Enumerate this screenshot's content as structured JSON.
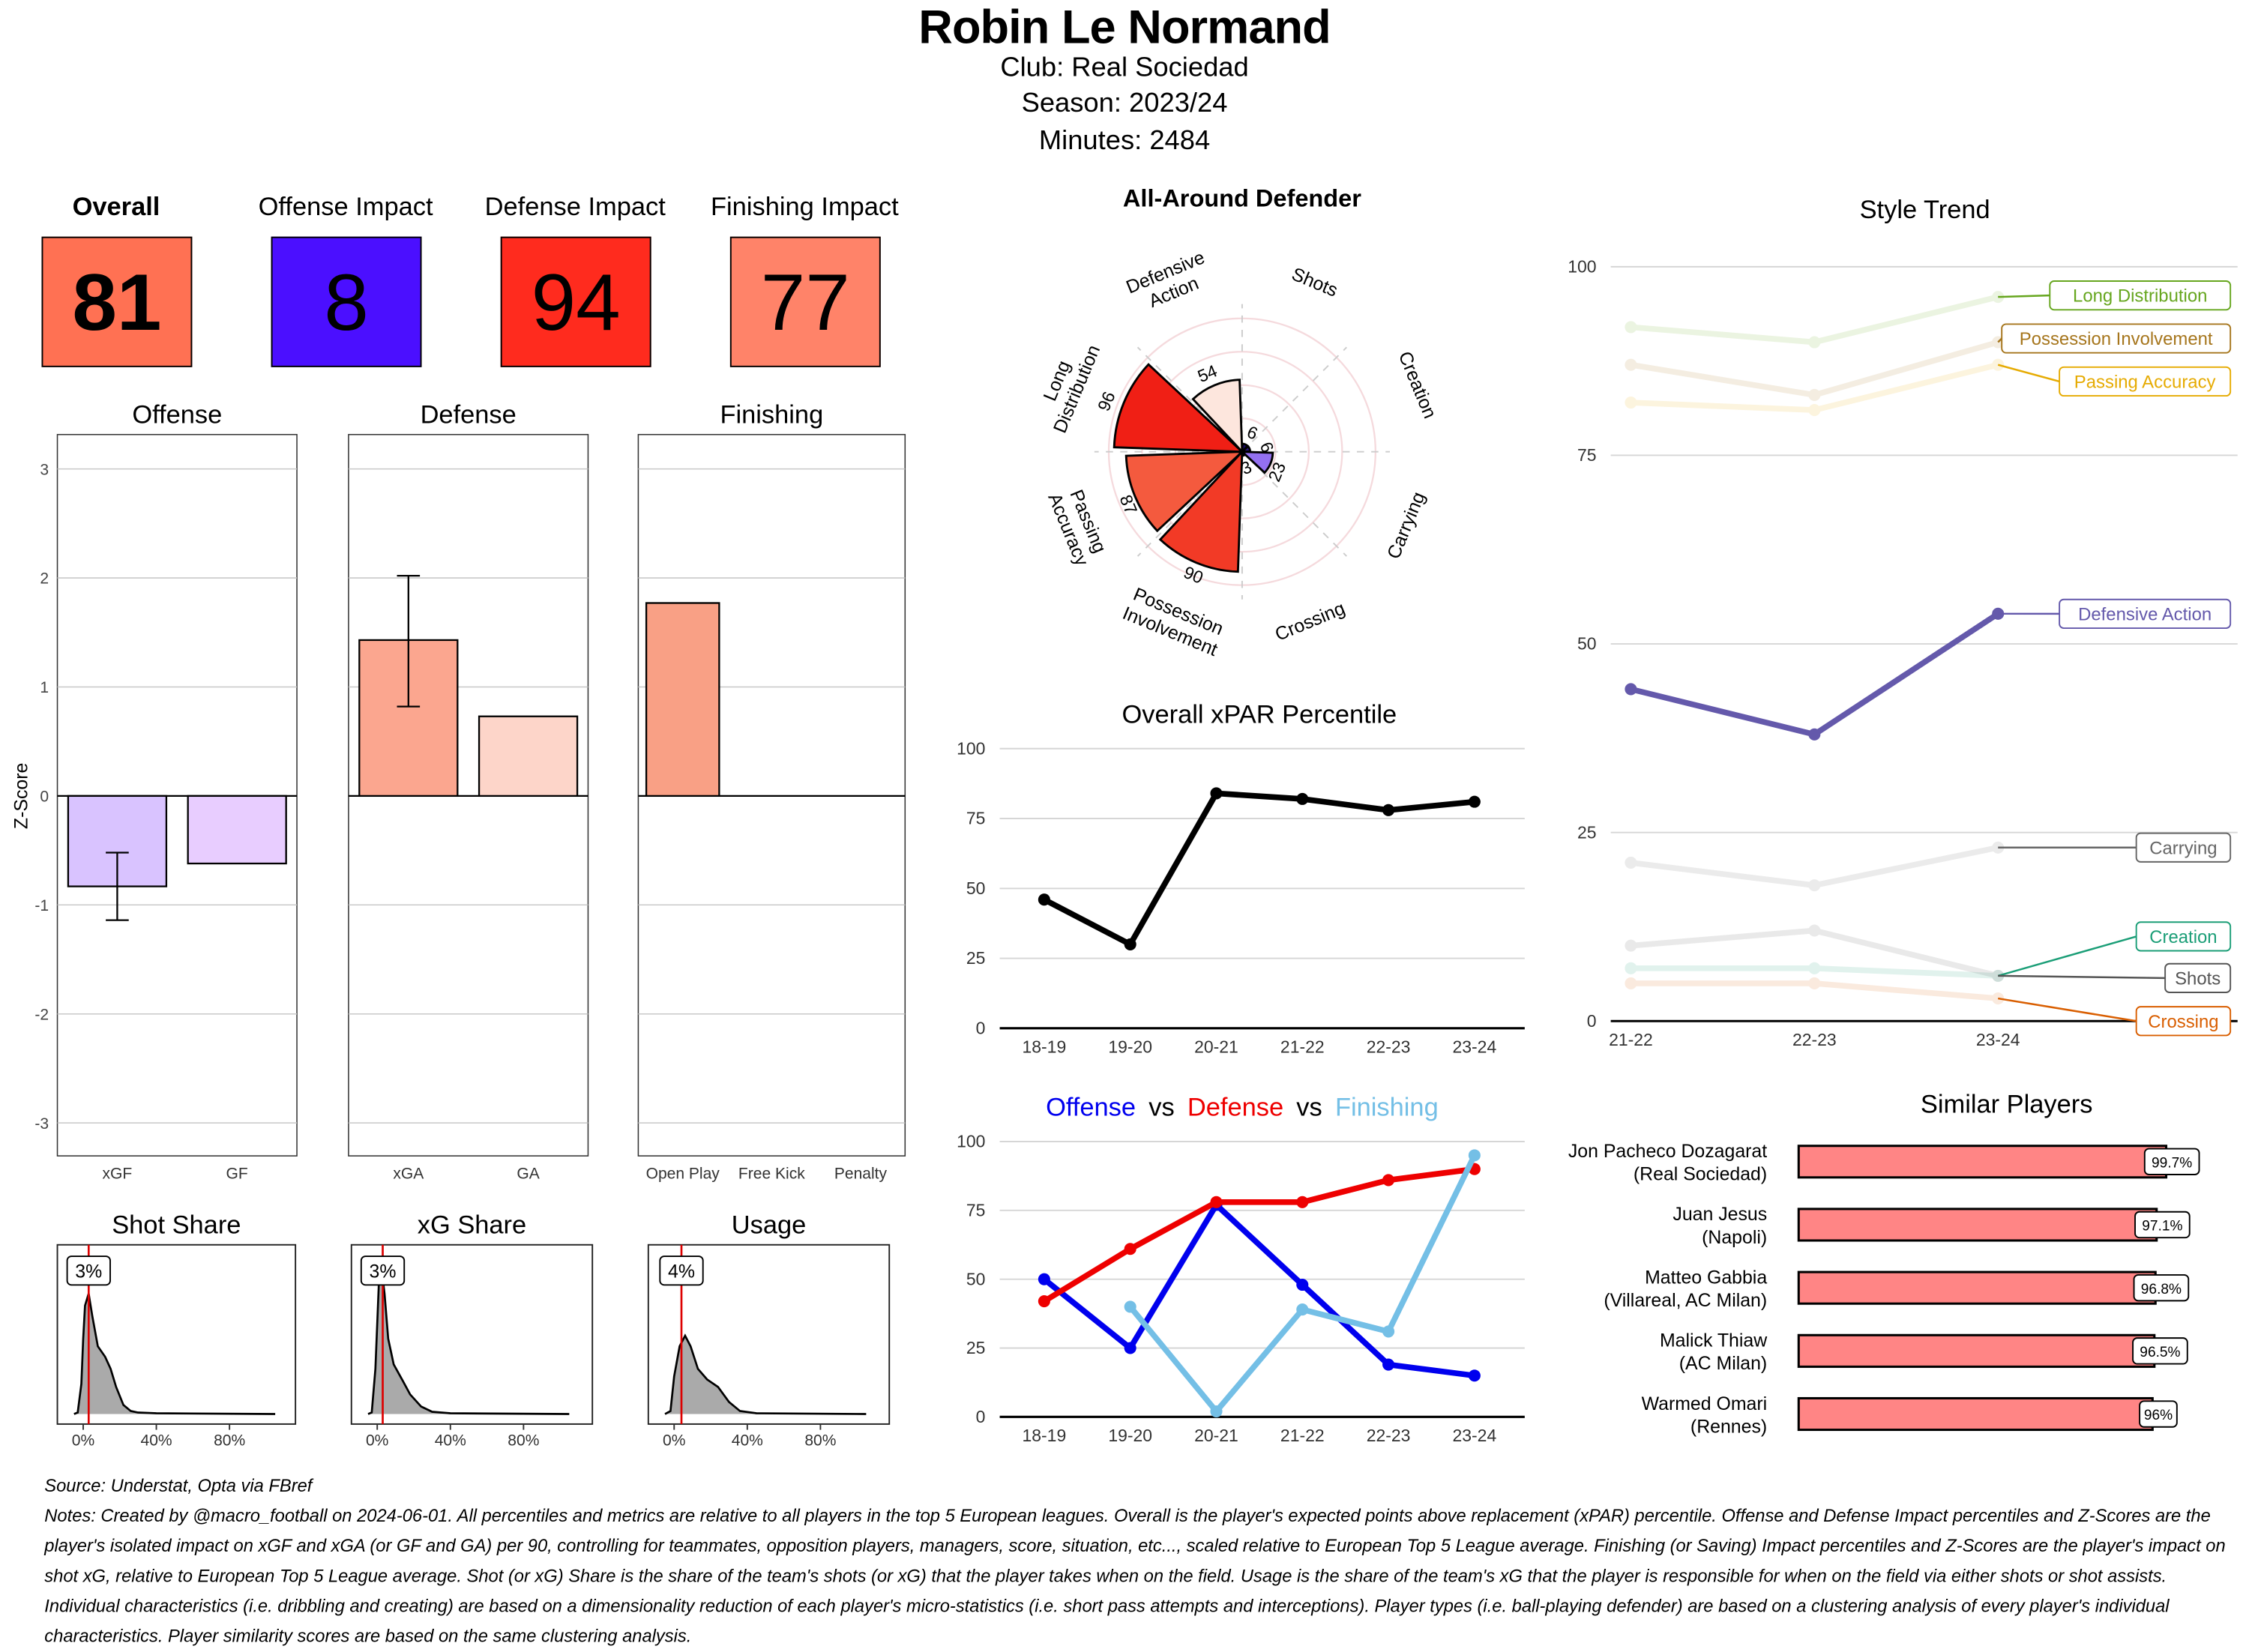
{
  "header": {
    "player_name": "Robin Le Normand",
    "club": "Club:  Real Sociedad",
    "season": "Season:  2023/24",
    "minutes": "Minutes:  2484"
  },
  "impacts": [
    {
      "label": "Overall",
      "value": "81",
      "color": "#FF7153"
    },
    {
      "label": "Offense Impact",
      "value": "8",
      "color": "#4B0FFF"
    },
    {
      "label": "Defense Impact",
      "value": "94",
      "color": "#FF2B1E"
    },
    {
      "label": "Finishing Impact",
      "value": "77",
      "color": "#FF8369"
    }
  ],
  "chart_data": [
    {
      "type": "bar",
      "title": "Offense",
      "ylabel": "Z-Score",
      "ylim": [
        -3.3,
        3.35
      ],
      "yticks": [
        -3,
        -2,
        -1,
        0,
        1,
        2,
        3
      ],
      "categories": [
        "xGF",
        "GF"
      ],
      "values": [
        -0.83,
        -0.62
      ],
      "errors": [
        [
          -1.14,
          -0.52
        ],
        null
      ],
      "colors": [
        "#D9C3FF",
        "#E8CDFF"
      ]
    },
    {
      "type": "bar",
      "title": "Defense",
      "ylim": [
        -3.3,
        3.35
      ],
      "categories": [
        "xGA",
        "GA"
      ],
      "values": [
        1.43,
        0.73
      ],
      "errors": [
        [
          0.82,
          2.02
        ],
        null
      ],
      "colors": [
        "#FBA68F",
        "#FDD5C9"
      ]
    },
    {
      "type": "bar",
      "title": "Finishing",
      "ylim": [
        -3.3,
        3.35
      ],
      "categories": [
        "Open Play",
        "Free Kick",
        "Penalty"
      ],
      "values": [
        1.77,
        0,
        0
      ],
      "errors": [
        null,
        null,
        null
      ],
      "colors": [
        "#F9A085",
        "#F9A085",
        "#F9A085"
      ]
    },
    {
      "type": "area",
      "title": "Shot Share",
      "marker": 3,
      "marker_label": "3%",
      "xticks": [
        "0%",
        "40%",
        "80%"
      ],
      "xtick_values": [
        0,
        40,
        80
      ],
      "density": [
        [
          -5,
          0
        ],
        [
          -3,
          0.01
        ],
        [
          -1,
          0.2
        ],
        [
          0,
          0.5
        ],
        [
          1,
          0.72
        ],
        [
          3,
          0.8
        ],
        [
          5,
          0.65
        ],
        [
          8,
          0.45
        ],
        [
          12,
          0.38
        ],
        [
          15,
          0.3
        ],
        [
          18,
          0.18
        ],
        [
          22,
          0.06
        ],
        [
          26,
          0.02
        ],
        [
          30,
          0.01
        ],
        [
          40,
          0.005
        ],
        [
          105,
          0
        ]
      ]
    },
    {
      "type": "area",
      "title": "xG Share",
      "marker": 3,
      "marker_label": "3%",
      "xticks": [
        "0%",
        "40%",
        "80%"
      ],
      "xtick_values": [
        0,
        40,
        80
      ],
      "density": [
        [
          -5,
          0
        ],
        [
          -3,
          0.01
        ],
        [
          -1,
          0.3
        ],
        [
          1,
          0.9
        ],
        [
          2,
          1.0
        ],
        [
          4,
          0.8
        ],
        [
          6,
          0.5
        ],
        [
          9,
          0.33
        ],
        [
          14,
          0.22
        ],
        [
          18,
          0.13
        ],
        [
          24,
          0.05
        ],
        [
          30,
          0.015
        ],
        [
          40,
          0.005
        ],
        [
          105,
          0
        ]
      ]
    },
    {
      "type": "area",
      "title": "Usage",
      "marker": 4,
      "marker_label": "4%",
      "xticks": [
        "0%",
        "40%",
        "80%"
      ],
      "xtick_values": [
        0,
        40,
        80
      ],
      "density": [
        [
          -5,
          0
        ],
        [
          -2,
          0.02
        ],
        [
          0,
          0.25
        ],
        [
          3,
          0.45
        ],
        [
          6,
          0.52
        ],
        [
          9,
          0.45
        ],
        [
          13,
          0.3
        ],
        [
          18,
          0.23
        ],
        [
          24,
          0.18
        ],
        [
          30,
          0.08
        ],
        [
          36,
          0.02
        ],
        [
          45,
          0.005
        ],
        [
          105,
          0
        ]
      ]
    },
    {
      "type": "bar",
      "subtype": "polar",
      "title": "All-Around Defender",
      "categories": [
        [
          "Shots"
        ],
        [
          "Creation"
        ],
        [
          "Carrying"
        ],
        [
          "Crossing"
        ],
        [
          "Possession",
          "Involvement"
        ],
        [
          "Passing",
          "Accuracy"
        ],
        [
          "Long",
          "Distribution"
        ],
        [
          "Defensive",
          "Action"
        ]
      ],
      "values": [
        6,
        6,
        23,
        3,
        90,
        87,
        96,
        54
      ],
      "colors": [
        "#1A0A6B",
        "#2A1480",
        "#9370F0",
        "#F6D7CC",
        "#F23A26",
        "#F45A3E",
        "#F01F15",
        "#FDE6DD"
      ],
      "ylim": [
        0,
        100
      ]
    },
    {
      "type": "line",
      "title": "Overall xPAR Percentile",
      "categories": [
        "18-19",
        "19-20",
        "20-21",
        "21-22",
        "22-23",
        "23-24"
      ],
      "yticks": [
        0,
        25,
        50,
        75,
        100
      ],
      "ylim": [
        0,
        100
      ],
      "series": [
        {
          "values": [
            46,
            30,
            84,
            82,
            78,
            81
          ],
          "color": "#000000"
        }
      ]
    },
    {
      "type": "line",
      "title_parts": [
        {
          "text": "Offense",
          "color": "#0000EE"
        },
        {
          "text": "vs",
          "color": "#000000"
        },
        {
          "text": "Defense",
          "color": "#EE0000"
        },
        {
          "text": "vs",
          "color": "#000000"
        },
        {
          "text": "Finishing",
          "color": "#74BFE6"
        }
      ],
      "categories": [
        "18-19",
        "19-20",
        "20-21",
        "21-22",
        "22-23",
        "23-24"
      ],
      "yticks": [
        0,
        25,
        50,
        75,
        100
      ],
      "ylim": [
        0,
        100
      ],
      "series": [
        {
          "name": "Offense",
          "values": [
            50,
            25,
            77,
            48,
            19,
            15
          ],
          "color": "#0000EE"
        },
        {
          "name": "Defense",
          "values": [
            42,
            61,
            78,
            78,
            86,
            90
          ],
          "color": "#EE0000"
        },
        {
          "name": "Finishing",
          "values": [
            null,
            40,
            2,
            39,
            31,
            95
          ],
          "color": "#74BFE6"
        }
      ]
    },
    {
      "type": "line",
      "title": "Style Trend",
      "categories": [
        "21-22",
        "22-23",
        "23-24"
      ],
      "yticks": [
        0,
        25,
        50,
        75,
        100
      ],
      "ylim": [
        0,
        100
      ],
      "highlight": "Defensive Action",
      "series": [
        {
          "name": "Long Distribution",
          "values": [
            92,
            90,
            96
          ],
          "color": "#66A61E"
        },
        {
          "name": "Possession Involvement",
          "values": [
            87,
            83,
            90
          ],
          "color": "#A6761D"
        },
        {
          "name": "Passing Accuracy",
          "values": [
            82,
            81,
            87
          ],
          "color": "#E6AB02"
        },
        {
          "name": "Defensive Action",
          "values": [
            44,
            38,
            54
          ],
          "color": "#6459AB"
        },
        {
          "name": "Carrying",
          "values": [
            21,
            18,
            23
          ],
          "color": "#666666"
        },
        {
          "name": "Creation",
          "values": [
            7,
            7,
            6
          ],
          "color": "#1B9E77"
        },
        {
          "name": "Shots",
          "values": [
            10,
            12,
            6
          ],
          "color": "#555555"
        },
        {
          "name": "Crossing",
          "values": [
            5,
            5,
            3
          ],
          "color": "#D95F02"
        }
      ]
    },
    {
      "type": "bar",
      "orientation": "horizontal",
      "title": "Similar Players",
      "categories": [
        [
          "Jon Pacheco Dozagarat",
          "(Real Sociedad)"
        ],
        [
          "Juan Jesus",
          "(Napoli)"
        ],
        [
          "Matteo Gabbia",
          "(Villareal, AC Milan)"
        ],
        [
          "Malick Thiaw",
          "(AC Milan)"
        ],
        [
          "Warmed Omari",
          "(Rennes)"
        ]
      ],
      "values": [
        99.7,
        97.1,
        96.8,
        96.5,
        96
      ],
      "labels": [
        "99.7%",
        "97.1%",
        "96.8%",
        "96.5%",
        "96%"
      ],
      "color": "#FF8585"
    }
  ],
  "footer": {
    "source": "Source: Understat, Opta via FBref",
    "notes": "Notes: Created by @macro_football on 2024-06-01. All percentiles and metrics are relative to all players in the top 5 European leagues. Overall is the player's expected points above replacement (xPAR) percentile. Offense and Defense Impact percentiles and Z-Scores are the player's isolated impact on xGF and xGA (or GF and GA) per 90, controlling for teammates, opposition players, managers, score, situation, etc..., scaled relative to European Top 5 League average. Finishing (or Saving) Impact percentiles and Z-Scores are the player's impact on shot xG, relative to European Top 5 League average. Shot (or xG) Share is the share of the team's shots (or xG) that the player takes when on the field. Usage is the share of the team's xG that the player is responsible for when on the field via either shots or shot assists. Individual characteristics (i.e. dribbling and creating) are based on a dimensionality reduction of each player's micro-statistics (i.e. short pass attempts and interceptions). Player types (i.e. ball-playing defender) are based on a clustering analysis of every player's individual characteristics. Player similarity scores are based on the same clustering analysis."
  }
}
